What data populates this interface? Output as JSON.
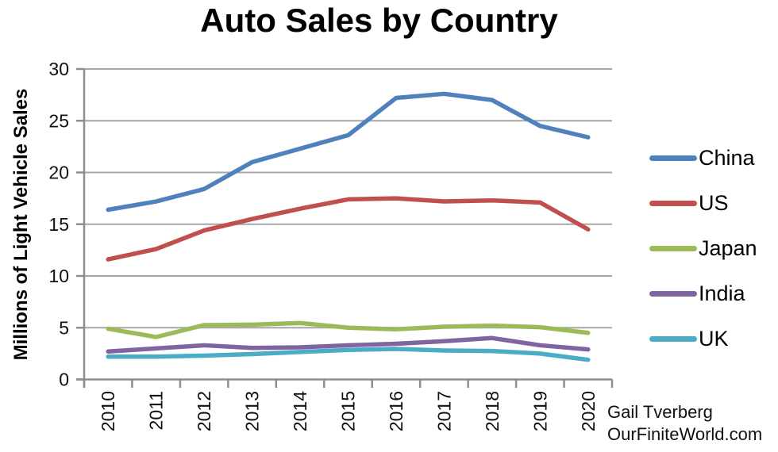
{
  "title": "Auto Sales by Country",
  "attribution": {
    "line1": "Gail Tverberg",
    "line2": "OurFiniteWorld.com"
  },
  "chart_data": {
    "type": "line",
    "title": "Auto Sales by Country",
    "xlabel": "",
    "ylabel": "Millions of Light Vehicle Sales",
    "ylim": [
      0,
      30
    ],
    "yticks": [
      0,
      5,
      10,
      15,
      20,
      25,
      30
    ],
    "grid": true,
    "legend_position": "right",
    "categories": [
      "2010",
      "2011",
      "2012",
      "2013",
      "2014",
      "2015",
      "2016",
      "2017",
      "2018",
      "2019",
      "2020"
    ],
    "series": [
      {
        "name": "China",
        "color": "#4F81BD",
        "values": [
          16.4,
          17.2,
          18.4,
          21.0,
          22.3,
          23.6,
          27.2,
          27.6,
          27.0,
          24.5,
          23.4
        ]
      },
      {
        "name": "US",
        "color": "#C0504D",
        "values": [
          11.6,
          12.6,
          14.4,
          15.5,
          16.5,
          17.4,
          17.5,
          17.2,
          17.3,
          17.1,
          14.5
        ]
      },
      {
        "name": "Japan",
        "color": "#9BBB59",
        "values": [
          4.9,
          4.1,
          5.25,
          5.3,
          5.45,
          5.0,
          4.85,
          5.1,
          5.2,
          5.05,
          4.5
        ]
      },
      {
        "name": "India",
        "color": "#8064A2",
        "values": [
          2.7,
          3.0,
          3.3,
          3.05,
          3.1,
          3.3,
          3.45,
          3.7,
          4.0,
          3.3,
          2.9
        ]
      },
      {
        "name": "UK",
        "color": "#4BACC6",
        "values": [
          2.2,
          2.2,
          2.3,
          2.45,
          2.65,
          2.85,
          2.95,
          2.8,
          2.75,
          2.5,
          1.9
        ]
      }
    ],
    "colors": {
      "gridline": "#A6A6A6",
      "axis": "#8E8E8E",
      "text": "#000000"
    }
  }
}
